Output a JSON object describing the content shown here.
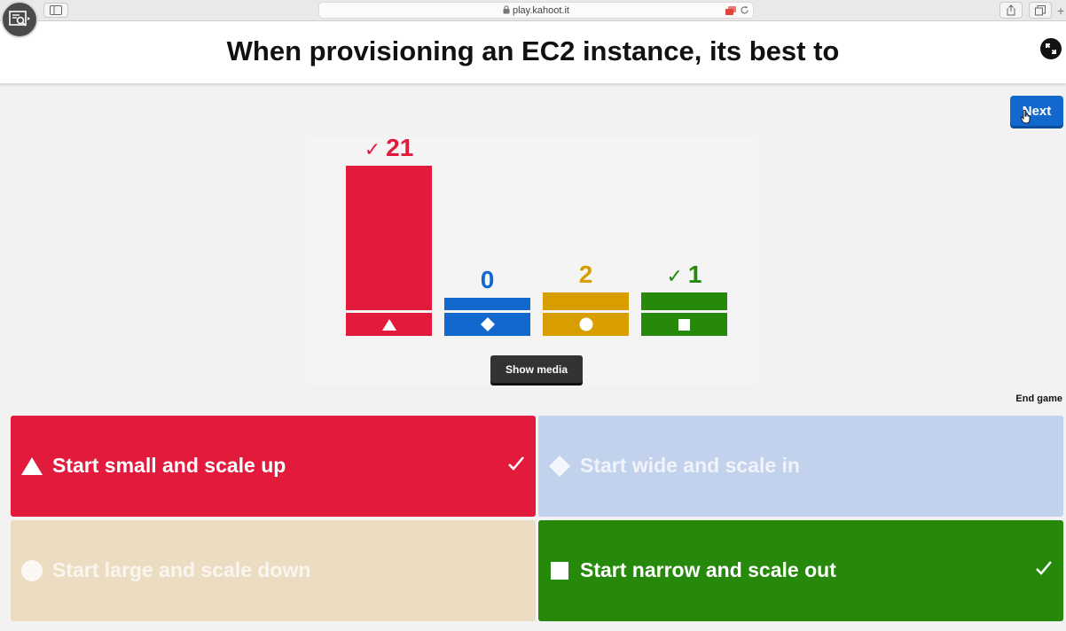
{
  "browser": {
    "url": "play.kahoot.it",
    "icons": [
      "screen-recorder-icon",
      "sidebar-icon",
      "lock-icon",
      "tab-indicator-icon",
      "reload-icon",
      "share-icon",
      "tabs-icon",
      "new-tab-icon"
    ]
  },
  "question": {
    "title": "When provisioning an EC2 instance, its best to"
  },
  "controls": {
    "next_label": "Next",
    "show_media_label": "Show media",
    "end_game_label": "End game"
  },
  "colors": {
    "red": "#e21b3c",
    "blue": "#1368ce",
    "yellow": "#d89e00",
    "green": "#26890c"
  },
  "chart_data": {
    "type": "bar",
    "categories": [
      "triangle",
      "diamond",
      "circle",
      "square"
    ],
    "values": [
      21,
      0,
      2,
      1
    ],
    "correct": [
      true,
      false,
      false,
      true
    ],
    "labels": [
      "21",
      "0",
      "2",
      "1"
    ],
    "colors": [
      "#e21b3c",
      "#1368ce",
      "#d89e00",
      "#26890c"
    ]
  },
  "answers": [
    {
      "shape": "triangle",
      "text": "Start small and scale up",
      "correct": true,
      "color": "#e21b3c"
    },
    {
      "shape": "diamond",
      "text": "Start wide and scale in",
      "correct": false,
      "color": "#c3d2ec"
    },
    {
      "shape": "circle",
      "text": "Start large and scale down",
      "correct": false,
      "color": "#ecdcc2"
    },
    {
      "shape": "square",
      "text": "Start narrow and scale out",
      "correct": true,
      "color": "#26890c"
    }
  ]
}
